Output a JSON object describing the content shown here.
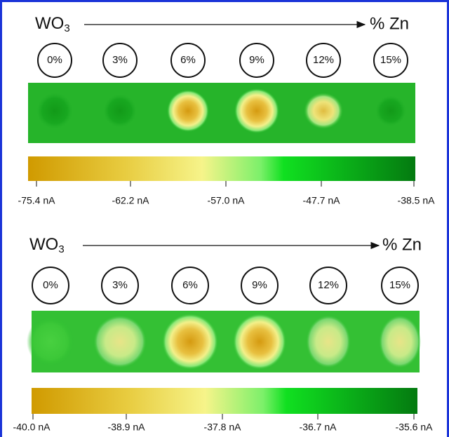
{
  "panels": [
    {
      "start_label": "WO",
      "start_subscript": "3",
      "end_label": "% Zn",
      "samples": [
        "0%",
        "3%",
        "6%",
        "9%",
        "12%",
        "15%"
      ],
      "colorbar_labels": [
        "-75.4 nA",
        "-62.2 nA",
        "-57.0 nA",
        "-47.7 nA",
        "-38.5 nA"
      ]
    },
    {
      "start_label": "WO",
      "start_subscript": "3",
      "end_label": "% Zn",
      "samples": [
        "0%",
        "3%",
        "6%",
        "9%",
        "12%",
        "15%"
      ],
      "colorbar_labels": [
        "-40.0 nA",
        "-38.9 nA",
        "-37.8 nA",
        "-36.7 nA",
        "-35.6 nA"
      ]
    }
  ]
}
